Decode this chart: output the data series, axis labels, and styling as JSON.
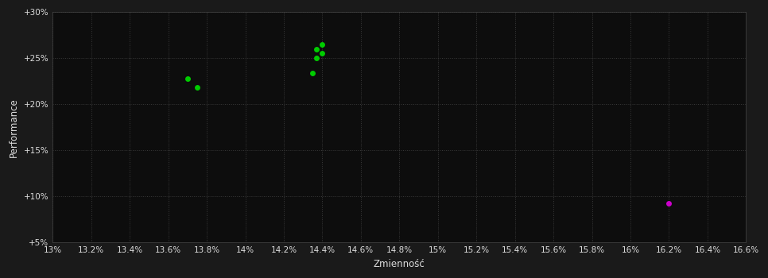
{
  "background_color": "#1a1a1a",
  "plot_bg_color": "#0d0d0d",
  "grid_color": "#3a3a3a",
  "text_color": "#dddddd",
  "xlabel": "Zmienność",
  "ylabel": "Performance",
  "xlim": [
    0.13,
    0.166
  ],
  "ylim": [
    0.05,
    0.3
  ],
  "xticks": [
    0.13,
    0.132,
    0.134,
    0.136,
    0.138,
    0.14,
    0.142,
    0.144,
    0.146,
    0.148,
    0.15,
    0.152,
    0.154,
    0.156,
    0.158,
    0.16,
    0.162,
    0.164,
    0.166
  ],
  "yticks": [
    0.05,
    0.1,
    0.15,
    0.2,
    0.25,
    0.3
  ],
  "green_points": [
    [
      0.137,
      0.228
    ],
    [
      0.1375,
      0.218
    ],
    [
      0.1435,
      0.234
    ],
    [
      0.1437,
      0.25
    ],
    [
      0.1437,
      0.26
    ],
    [
      0.144,
      0.255
    ],
    [
      0.144,
      0.265
    ]
  ],
  "magenta_points": [
    [
      0.162,
      0.093
    ]
  ],
  "green_color": "#00cc00",
  "magenta_color": "#cc00cc",
  "marker_size": 5
}
